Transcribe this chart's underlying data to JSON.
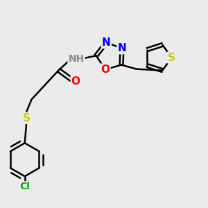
{
  "bg_color": "#ebebeb",
  "bond_color": "#000000",
  "bond_width": 1.8,
  "atom_colors": {
    "N": "#0000ff",
    "O": "#ff0000",
    "S": "#cccc00",
    "Cl": "#00aa00",
    "H": "#888888",
    "C": "#000000"
  },
  "font_size_atom": 11,
  "font_size_small": 9.5
}
